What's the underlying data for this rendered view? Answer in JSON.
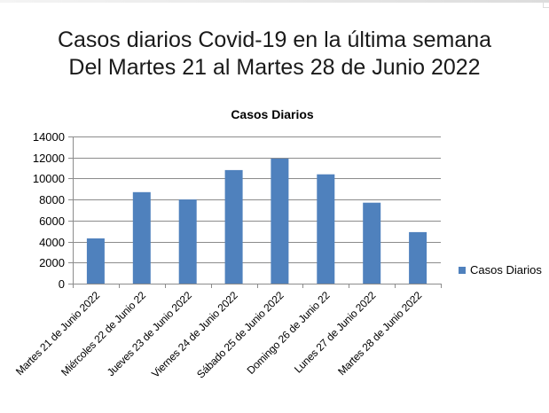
{
  "slide": {
    "title_line1": "Casos diarios Covid-19 en la última semana",
    "title_line2": "Del Martes 21 al Martes 28 de Junio 2022"
  },
  "chart_data": {
    "type": "bar",
    "title": "Casos Diarios",
    "categories": [
      "Martes 21 de Junio 2022",
      "Miércoles 22 de Junio 22",
      "Jueves 23 de Junio 2022",
      "Viernes 24 de Junio 2022",
      "Sábado 25 de Junio 2022",
      "Domingo 26 de Junio 22",
      "Lunes 27 de Junio 2022",
      "Martes 28 de Junio 2022"
    ],
    "series": [
      {
        "name": "Casos Diarios",
        "values": [
          4300,
          8700,
          8000,
          10800,
          11900,
          10400,
          7700,
          4900
        ]
      }
    ],
    "ylim": [
      0,
      14000
    ],
    "yticks": [
      "0",
      "2000",
      "4000",
      "6000",
      "8000",
      "10000",
      "12000",
      "14000"
    ],
    "grid": true,
    "legend_position": "right",
    "colors": {
      "bar": "#4f81bd",
      "grid": "#8c8c8c",
      "axis": "#8c8c8c"
    }
  }
}
